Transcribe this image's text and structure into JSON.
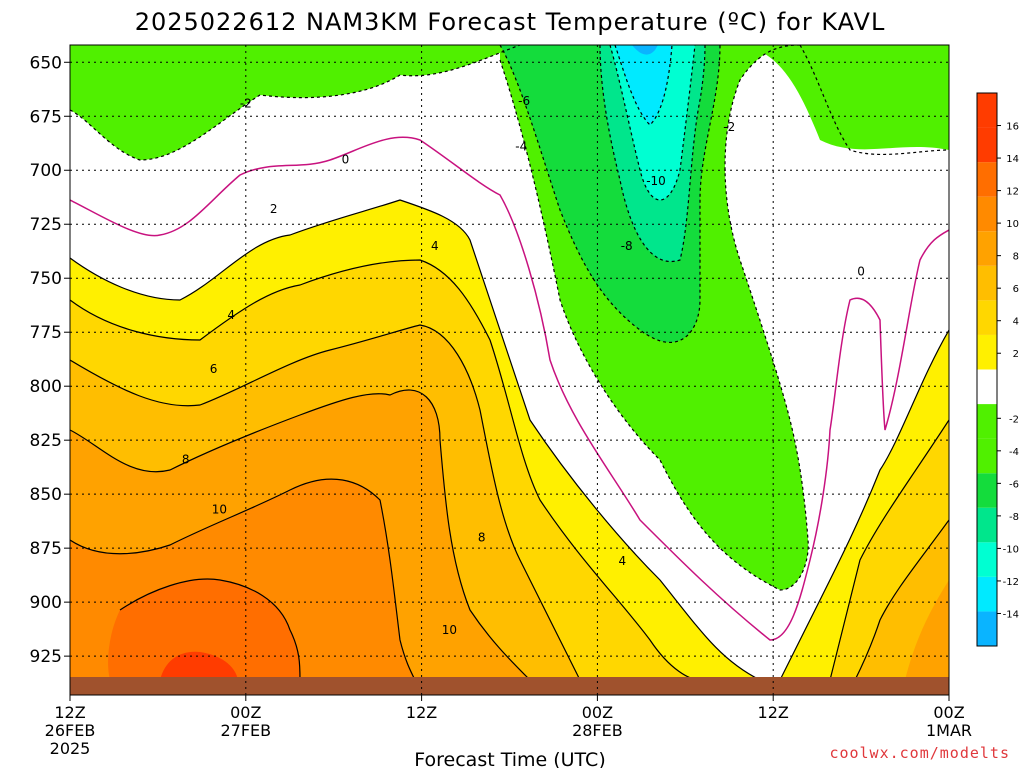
{
  "title": "2025022612 NAM3KM Forecast Temperature (ºC) for KAVL",
  "credit": "coolwx.com/modelts",
  "colors": {
    "bands": [
      "#0ab4ff",
      "#00eaff",
      "#00ffd2",
      "#00e68c",
      "#14dc3c",
      "#50f000",
      "#ffffff",
      "#fff000",
      "#ffd700",
      "#ffbe00",
      "#ffa200",
      "#ff8a00",
      "#ff6e00",
      "#ff3c00"
    ],
    "band_edges": [
      -16,
      -14,
      -12,
      -10,
      -8,
      -6,
      -4,
      -2,
      2,
      4,
      6,
      8,
      10,
      12,
      14,
      16,
      18
    ],
    "ground": "#a0522d",
    "zero_line": "#c8127f"
  },
  "chart_data": {
    "type": "heatmap",
    "title": "2025022612 NAM3KM Forecast Temperature (ºC) for KAVL",
    "xlabel": "Forecast Time (UTC)",
    "ylabel": "",
    "x_ticks": [
      {
        "hour": 0,
        "lines": [
          "12Z",
          "26FEB",
          "2025"
        ]
      },
      {
        "hour": 12,
        "lines": [
          "00Z",
          "27FEB"
        ]
      },
      {
        "hour": 24,
        "lines": [
          "12Z"
        ]
      },
      {
        "hour": 36,
        "lines": [
          "00Z",
          "28FEB"
        ]
      },
      {
        "hour": 48,
        "lines": [
          "12Z"
        ]
      },
      {
        "hour": 60,
        "lines": [
          "00Z",
          "1MAR"
        ]
      }
    ],
    "y_ticks": [
      650,
      675,
      700,
      725,
      750,
      775,
      800,
      825,
      850,
      875,
      900,
      925
    ],
    "ylim_hPa": [
      642,
      943
    ],
    "xlim_hours": [
      0,
      60
    ],
    "colorbar_ticks": [
      -14,
      -12,
      -10,
      -8,
      -6,
      -4,
      -2,
      2,
      4,
      6,
      8,
      10,
      12,
      14,
      16
    ],
    "grid": true,
    "surface_pressure_hPa": 937,
    "contour_labels": [
      {
        "value": "-2",
        "hour": 12.0,
        "hPa": 669
      },
      {
        "value": "0",
        "hour": 18.8,
        "hPa": 695
      },
      {
        "value": "2",
        "hour": 13.9,
        "hPa": 718
      },
      {
        "value": "4",
        "hour": 24.9,
        "hPa": 735
      },
      {
        "value": "4",
        "hour": 11.0,
        "hPa": 767
      },
      {
        "value": "6",
        "hour": 9.8,
        "hPa": 792
      },
      {
        "value": "8",
        "hour": 7.9,
        "hPa": 834
      },
      {
        "value": "10",
        "hour": 10.2,
        "hPa": 857
      },
      {
        "value": "8",
        "hour": 28.1,
        "hPa": 870
      },
      {
        "value": "10",
        "hour": 25.9,
        "hPa": 913
      },
      {
        "value": "4",
        "hour": 37.7,
        "hPa": 881
      },
      {
        "value": "-6",
        "hour": 31.0,
        "hPa": 668
      },
      {
        "value": "-4",
        "hour": 30.8,
        "hPa": 689
      },
      {
        "value": "-10",
        "hour": 40.0,
        "hPa": 705
      },
      {
        "value": "-8",
        "hour": 38.0,
        "hPa": 735
      },
      {
        "value": "-2",
        "hour": 45.0,
        "hPa": 680
      },
      {
        "value": "0",
        "hour": 54.0,
        "hPa": 747
      }
    ]
  }
}
